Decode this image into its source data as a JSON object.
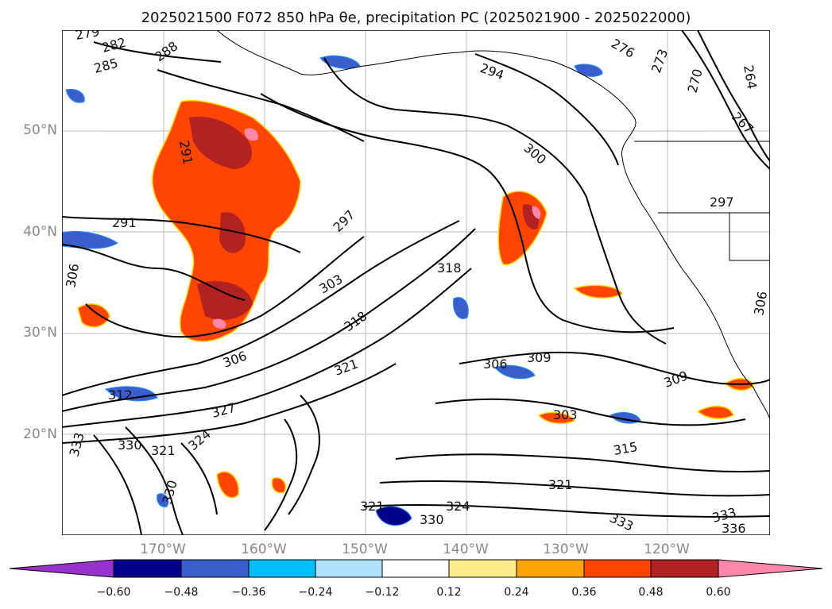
{
  "title": "2025021500 F072 850 hPa θe, precipitation PC (2025021900 - 2025022000)",
  "lat_labels": [
    "50°N",
    "40°N",
    "30°N",
    "20°N"
  ],
  "lon_labels": [
    "170°W",
    "160°W",
    "150°W",
    "140°W",
    "130°W",
    "120°W"
  ],
  "colorbar": {
    "ticks": [
      "−0.60",
      "−0.48",
      "−0.36",
      "−0.24",
      "−0.12",
      "0.12",
      "0.24",
      "0.36",
      "0.48",
      "0.60"
    ],
    "colors": [
      "#9932cc",
      "#00008b",
      "#3a5fcd",
      "#00bfff",
      "#b0e2ff",
      "#ffffff",
      "#ffec8b",
      "#ffa500",
      "#ff4500",
      "#b22222",
      "#ff88aa",
      "#ff88aa"
    ]
  },
  "contour_labels": [
    "279",
    "282",
    "285",
    "288",
    "294",
    "276",
    "273",
    "270",
    "264",
    "267",
    "300",
    "297",
    "291",
    "291",
    "297",
    "306",
    "303",
    "318",
    "318",
    "306",
    "321",
    "309",
    "306",
    "309",
    "327",
    "324",
    "330",
    "321",
    "333",
    "330",
    "303",
    "315",
    "321",
    "324",
    "330",
    "321",
    "333",
    "336",
    "333",
    "306",
    "312"
  ]
}
